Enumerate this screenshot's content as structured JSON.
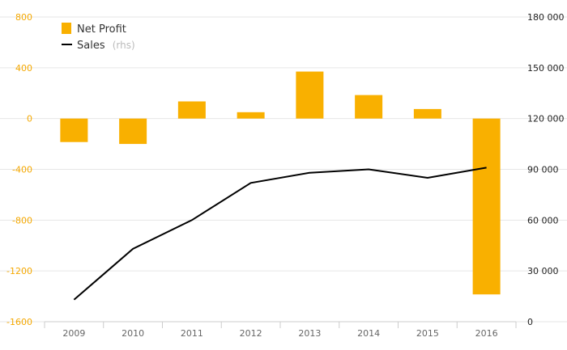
{
  "chart_data": {
    "type": "bar+line",
    "categories": [
      "2009",
      "2010",
      "2011",
      "2012",
      "2013",
      "2014",
      "2015",
      "2016"
    ],
    "series": [
      {
        "name": "Net Profit",
        "type": "bar",
        "axis": "left",
        "color": "#F9B000",
        "values": [
          -185,
          -200,
          135,
          50,
          370,
          185,
          75,
          -1385
        ]
      },
      {
        "name": "Sales",
        "name_suffix": "(rhs)",
        "type": "line",
        "axis": "right",
        "color": "#000000",
        "values": [
          13000,
          43000,
          60000,
          82000,
          88000,
          90000,
          85000,
          91000
        ]
      }
    ],
    "y_left": {
      "ylim": [
        -1600,
        800
      ],
      "ticks": [
        "800",
        "400",
        "0",
        "-400",
        "-800",
        "-1200",
        "-1600"
      ],
      "color": "#F5A800"
    },
    "y_right": {
      "ylim": [
        0,
        180000
      ],
      "ticks": [
        "180 000",
        "150 000",
        "120 000",
        "90 000",
        "60 000",
        "30 000",
        "0"
      ],
      "color": "#222222"
    },
    "grid": true,
    "legend_position": "top-left"
  }
}
